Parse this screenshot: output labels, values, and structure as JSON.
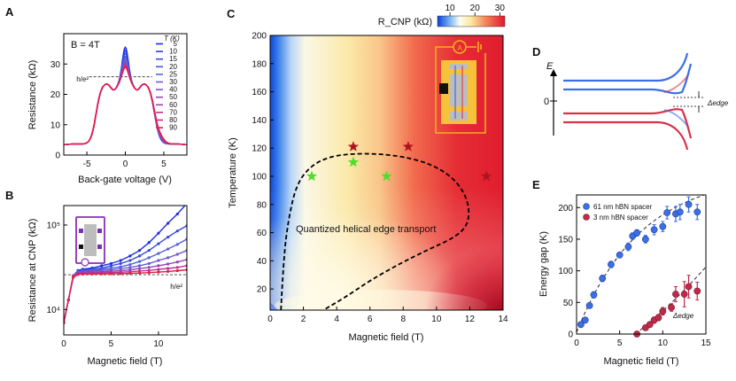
{
  "chart_data": [
    {
      "panel": "A",
      "type": "line",
      "xlabel": "Back-gate voltage (V)",
      "ylabel": "Resistance (kΩ)",
      "xlim": [
        -8,
        8
      ],
      "ylim": [
        0,
        40
      ],
      "xticks": [
        -5,
        0,
        5
      ],
      "yticks": [
        0,
        10,
        20,
        30
      ],
      "annotation": "B = 4T",
      "legend_title": "T (K)",
      "legend_position": "right",
      "hline_label": "h/e²",
      "hline_value": 25.8,
      "series": [
        {
          "name": "5",
          "color": "#1d2ee0"
        },
        {
          "name": "10",
          "color": "#2a3be0"
        },
        {
          "name": "15",
          "color": "#3849df"
        },
        {
          "name": "20",
          "color": "#4757dd"
        },
        {
          "name": "25",
          "color": "#5563db"
        },
        {
          "name": "30",
          "color": "#6a5ad2"
        },
        {
          "name": "40",
          "color": "#7d4fc5"
        },
        {
          "name": "50",
          "color": "#9345b5"
        },
        {
          "name": "60",
          "color": "#a83ca3"
        },
        {
          "name": "70",
          "color": "#be318c"
        },
        {
          "name": "80",
          "color": "#d42670"
        },
        {
          "name": "90",
          "color": "#e61c48"
        }
      ],
      "peak_values": [
        32.5,
        31.5,
        30.5,
        29.5,
        28.8,
        28.2,
        27.6,
        27.2,
        26.8,
        26.5,
        26.2,
        25.9
      ]
    },
    {
      "panel": "B",
      "type": "line",
      "xlabel": "Magnetic field (T)",
      "ylabel": "Resistance at CNP (kΩ)",
      "xlim": [
        0,
        13
      ],
      "ylim": [
        5,
        170
      ],
      "yscale": "log",
      "xticks": [
        0,
        5,
        10
      ],
      "yticks": [
        10,
        100
      ],
      "yticklabels": [
        "10⁴",
        "10⁵"
      ],
      "hline_label": "h/e²",
      "hline_value": 25.8,
      "x": [
        0,
        0.5,
        1,
        1.5,
        2,
        3,
        4,
        5,
        6,
        7,
        8,
        9,
        10,
        11,
        12,
        13
      ],
      "series": [
        {
          "color": "#1d2ee0",
          "values": [
            7,
            13,
            25,
            29,
            30,
            31,
            33,
            35,
            38,
            43,
            50,
            62,
            80,
            105,
            135,
            180
          ]
        },
        {
          "color": "#3849df",
          "values": [
            7,
            13,
            25,
            28.5,
            29,
            30,
            31,
            33,
            35,
            38,
            43,
            50,
            60,
            72,
            85,
            98
          ]
        },
        {
          "color": "#5563db",
          "values": [
            7,
            13,
            25,
            28,
            28.5,
            29,
            30,
            31,
            32,
            34,
            37,
            41,
            46,
            52,
            59,
            68
          ]
        },
        {
          "color": "#6a5ad2",
          "values": [
            7,
            13,
            25,
            27.5,
            28,
            28.5,
            29,
            29.5,
            30.5,
            31.5,
            33,
            35,
            38,
            41,
            45,
            50
          ]
        },
        {
          "color": "#9345b5",
          "values": [
            7,
            13,
            25,
            27,
            27.5,
            27.8,
            28,
            28.3,
            28.8,
            29.5,
            30.5,
            31.5,
            33,
            34.5,
            36.5,
            39
          ]
        },
        {
          "color": "#be318c",
          "values": [
            7,
            13,
            25,
            26.5,
            26.8,
            27,
            27.2,
            27.4,
            27.6,
            28,
            28.5,
            29,
            29.8,
            30.6,
            31.5,
            33
          ]
        },
        {
          "color": "#e61c48",
          "values": [
            7,
            13,
            24,
            26,
            26.2,
            26.3,
            26.4,
            26.5,
            26.6,
            26.8,
            27,
            27.3,
            27.7,
            28.2,
            28.8,
            29.5
          ]
        }
      ]
    },
    {
      "panel": "C",
      "type": "heatmap",
      "xlabel": "Magnetic field (T)",
      "ylabel": "Temperature (K)",
      "xlim": [
        0,
        14
      ],
      "ylim": [
        5,
        200
      ],
      "xticks": [
        0,
        2,
        4,
        6,
        8,
        10,
        12,
        14
      ],
      "yticks": [
        20,
        40,
        60,
        80,
        100,
        120,
        140,
        160,
        180,
        200
      ],
      "colorbar_label": "R_CNP (kΩ)",
      "colorbar_ticks": [
        10,
        20,
        30
      ],
      "colorbar_range": [
        5,
        32
      ],
      "region_label": "Quantized helical edge transport",
      "boundary": {
        "x": [
          0.65,
          0.8,
          1.1,
          1.6,
          2.5,
          3.6,
          4.9,
          6.4,
          8.0,
          9.6,
          10.9,
          11.7,
          12.0,
          11.8,
          11.0,
          9.5,
          7.8,
          6.0,
          4.5,
          3.2
        ],
        "y": [
          5,
          40,
          70,
          95,
          108,
          114,
          116,
          116,
          114,
          109,
          100,
          88,
          75,
          64,
          56,
          48,
          38,
          26,
          14,
          5
        ]
      },
      "stars_green": {
        "x": [
          2.5,
          5.0,
          7.0
        ],
        "y": [
          100,
          110,
          100
        ]
      },
      "stars_red": {
        "x": [
          5.0,
          8.3,
          13.0
        ],
        "y": [
          121,
          121,
          100
        ]
      }
    },
    {
      "panel": "D",
      "type": "diagram",
      "ylabel": "E",
      "zero_label": "0",
      "gap_label": "Δedge"
    },
    {
      "panel": "E",
      "type": "scatter",
      "xlabel": "Magnetic field (T)",
      "ylabel": "Energy gap (K)",
      "xlim": [
        0,
        15
      ],
      "ylim": [
        0,
        220
      ],
      "xticks": [
        0,
        5,
        10,
        15
      ],
      "yticks": [
        0,
        50,
        100,
        150,
        200
      ],
      "legend_position": "top-left",
      "gap_label": "Δedge",
      "series": [
        {
          "name": "61 nm hBN spacer",
          "color": "#3a6fe8",
          "x": [
            0.5,
            1,
            1.5,
            2,
            3,
            4,
            5,
            6,
            6.5,
            7,
            8,
            9,
            10,
            10.5,
            11.5,
            12,
            13,
            14
          ],
          "y": [
            15,
            22,
            45,
            62,
            88,
            110,
            125,
            138,
            155,
            160,
            150,
            165,
            170,
            192,
            190,
            193,
            205,
            193
          ],
          "err": [
            4,
            4,
            4,
            5,
            5,
            5,
            4,
            6,
            5,
            5,
            6,
            8,
            8,
            10,
            12,
            12,
            12,
            12
          ]
        },
        {
          "name": "3 nm hBN spacer",
          "color": "#c02a4a",
          "x": [
            7,
            8,
            8.5,
            9,
            9.5,
            10,
            11,
            11.5,
            12.5,
            13,
            14
          ],
          "y": [
            0,
            10,
            15,
            22,
            26,
            36,
            42,
            63,
            63,
            75,
            68
          ],
          "err": [
            2,
            4,
            4,
            5,
            5,
            6,
            6,
            12,
            20,
            18,
            14
          ]
        }
      ]
    }
  ]
}
